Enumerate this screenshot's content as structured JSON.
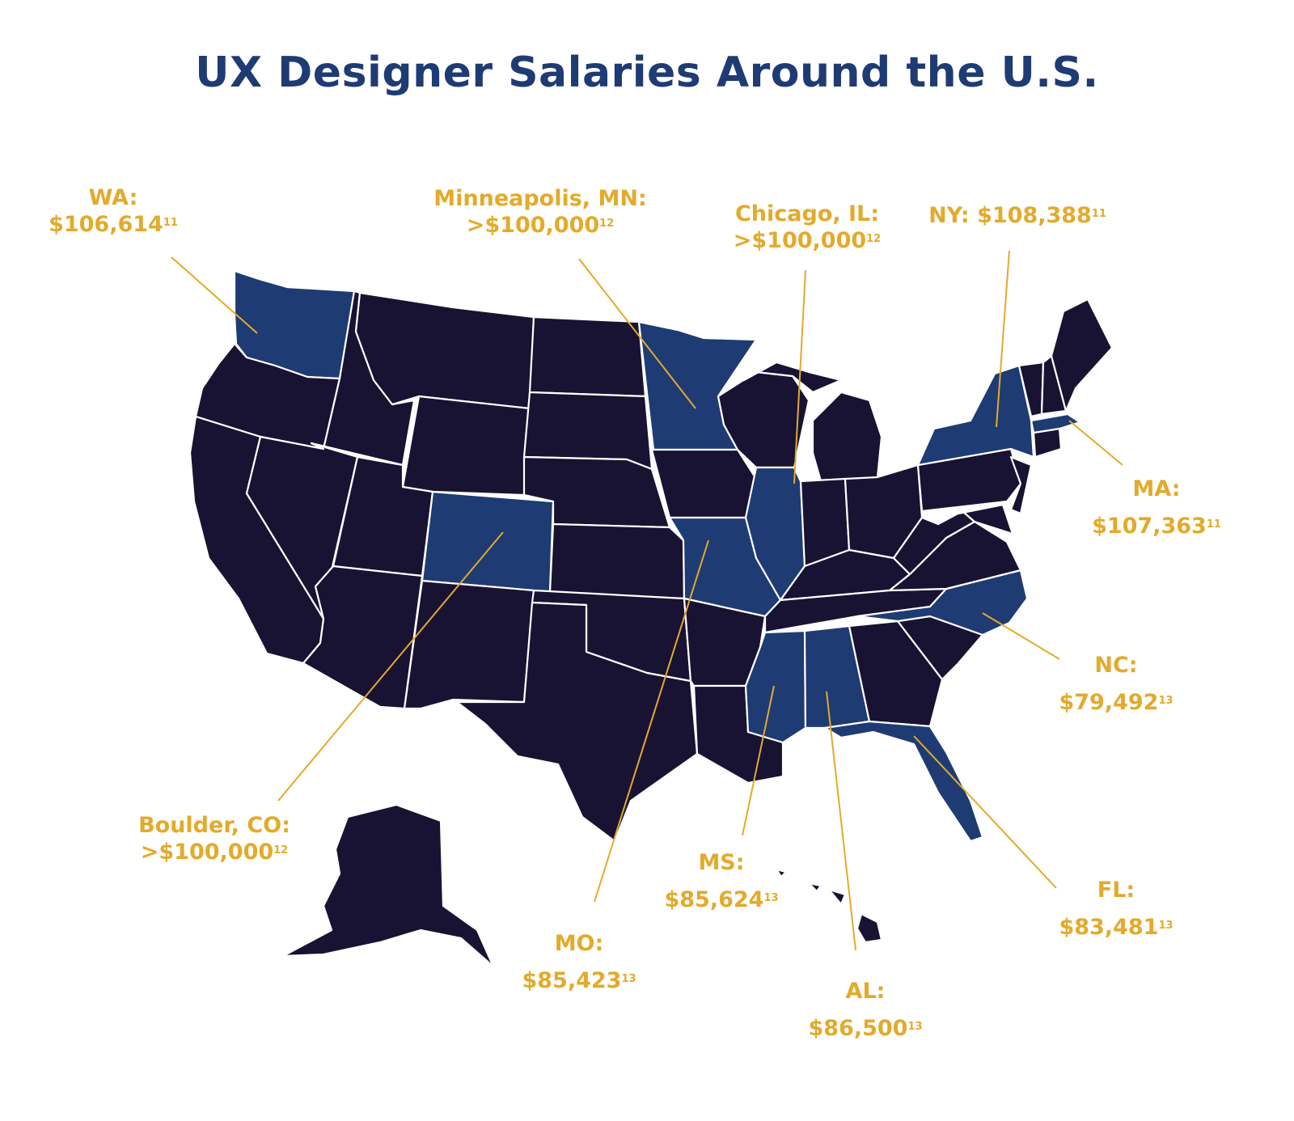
{
  "title": "UX Designer Salaries Around the U.S.",
  "colors": {
    "title": "#1e3b73",
    "label": "#e3aa2b",
    "highlighted_state": "#1e3b73",
    "other_state": "#181233",
    "border": "#ffffff"
  },
  "highlighted_states": [
    "WA",
    "MN",
    "CO",
    "IL",
    "MO",
    "MS",
    "AL",
    "FL",
    "NC",
    "NY",
    "MA"
  ],
  "labels": {
    "wa": {
      "name": "WA:",
      "salary": "$106,614",
      "ref": "11"
    },
    "mn": {
      "name": "Minneapolis, MN:",
      "salary": ">$100,000",
      "ref": "12"
    },
    "il": {
      "name": "Chicago, IL:",
      "salary": ">$100,000",
      "ref": "12"
    },
    "ny": {
      "name": "NY:",
      "salary": "$108,388",
      "ref": "11"
    },
    "ma": {
      "name": "MA:",
      "salary": "$107,363",
      "ref": "11"
    },
    "nc": {
      "name": "NC:",
      "salary": "$79,492",
      "ref": "13"
    },
    "fl": {
      "name": "FL:",
      "salary": "$83,481",
      "ref": "13"
    },
    "al": {
      "name": "AL:",
      "salary": "$86,500",
      "ref": "13"
    },
    "ms": {
      "name": "MS:",
      "salary": "$85,624",
      "ref": "13"
    },
    "mo": {
      "name": "MO:",
      "salary": "$85,423",
      "ref": "13"
    },
    "co": {
      "name": "Boulder, CO:",
      "salary": ">$100,000",
      "ref": "12"
    }
  }
}
